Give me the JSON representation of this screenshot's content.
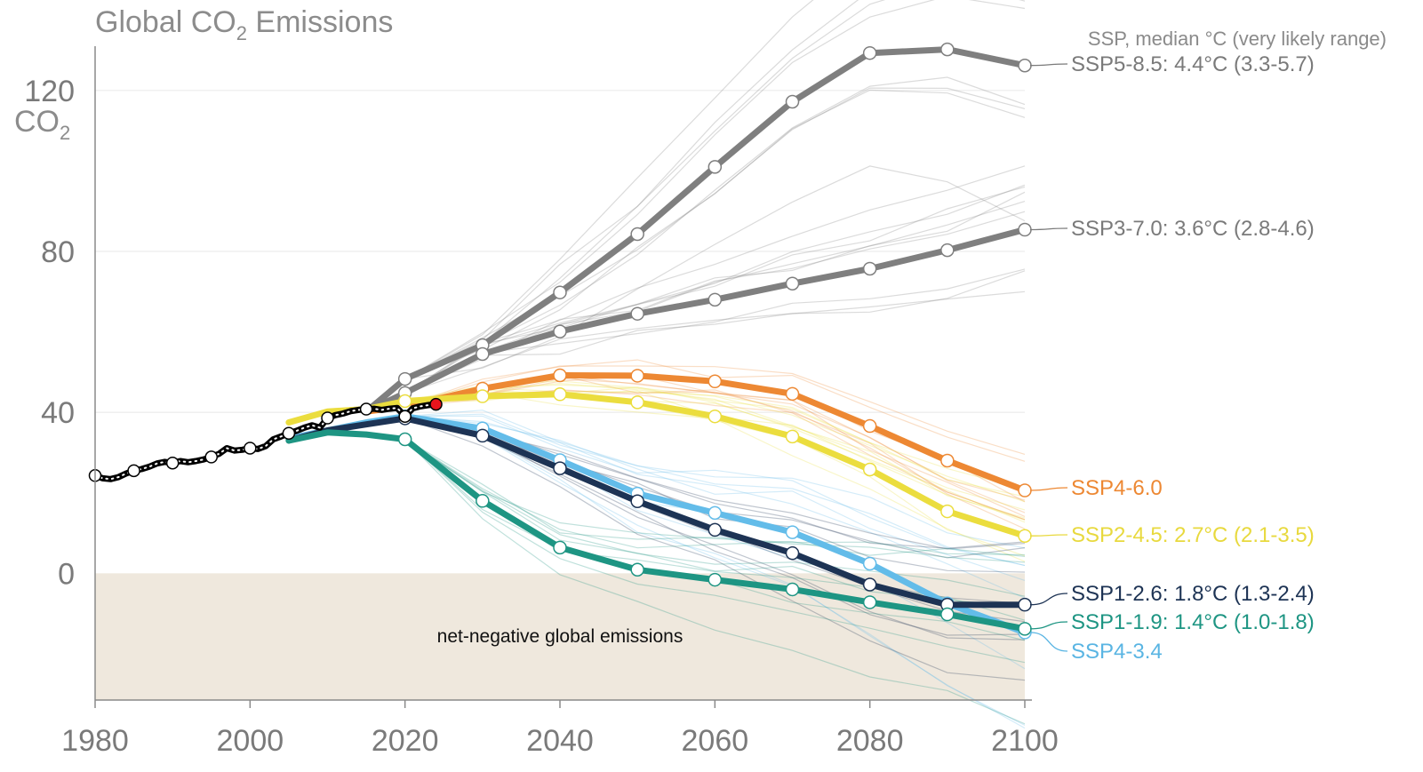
{
  "chart_data": {
    "type": "line",
    "title": "Global CO",
    "title_sub": "2",
    "title_suffix": " Emissions",
    "ylabel": "CO",
    "ylabel_sub": "2",
    "xlim": [
      1980,
      2100
    ],
    "ylim": [
      -31.5,
      131
    ],
    "x_ticks": [
      {
        "value": 1980,
        "label": "1980"
      },
      {
        "value": 2000,
        "label": "2000"
      },
      {
        "value": 2020,
        "label": "2020"
      },
      {
        "value": 2040,
        "label": "2040"
      },
      {
        "value": 2060,
        "label": "2060"
      },
      {
        "value": 2080,
        "label": "2080"
      },
      {
        "value": 2100,
        "label": "2100"
      }
    ],
    "y_ticks": [
      {
        "value": 0,
        "label": "0"
      },
      {
        "value": 40,
        "label": "40"
      },
      {
        "value": 80,
        "label": "80"
      },
      {
        "value": 120,
        "label": "120"
      }
    ],
    "grid": "horizontal",
    "legend_header": "SSP, median °C (very likely range)",
    "negative_region_label": "net-negative global emissions",
    "colors": {
      "negative_region": "#efe8dd",
      "axis": "#8a8a8a",
      "grid": "#ececec",
      "historical": "#000000",
      "latest_point": "#e8141c"
    },
    "historical": {
      "x": [
        1980,
        1981,
        1982,
        1983,
        1984,
        1985,
        1986,
        1987,
        1988,
        1989,
        1990,
        1991,
        1992,
        1993,
        1994,
        1995,
        1996,
        1997,
        1998,
        1999,
        2000,
        2001,
        2002,
        2003,
        2004,
        2005,
        2006,
        2007,
        2008,
        2009,
        2010,
        2011,
        2012,
        2013,
        2014,
        2015,
        2016,
        2017,
        2018,
        2019,
        2020,
        2021,
        2022,
        2023,
        2024
      ],
      "y": [
        24.3,
        23.6,
        23.4,
        23.9,
        24.8,
        25.5,
        25.9,
        26.5,
        27.3,
        27.7,
        27.4,
        27.9,
        27.6,
        27.9,
        28.3,
        28.9,
        29.7,
        31.1,
        30.5,
        30.7,
        31.1,
        30.9,
        31.6,
        33.3,
        34.0,
        34.8,
        35.4,
        36.2,
        36.8,
        36.2,
        38.6,
        39.3,
        39.7,
        40.3,
        40.6,
        40.8,
        40.9,
        40.6,
        40.9,
        41.1,
        39.0,
        41.0,
        41.5,
        41.8,
        42.0
      ],
      "markers": [
        1980,
        1985,
        1990,
        1995,
        2000,
        2005,
        2010,
        2015,
        2020
      ],
      "latest_x": 2024,
      "latest_y": 42.0
    },
    "series": [
      {
        "name": "SSP5-8.5: 4.4°C (3.3-5.7)",
        "color": "#7f7f7f",
        "label_color": "#7a7a7a",
        "x": [
          2015,
          2020,
          2030,
          2040,
          2050,
          2060,
          2070,
          2080,
          2090,
          2100
        ],
        "y": [
          40.2,
          48.3,
          56.7,
          69.8,
          84.3,
          101.0,
          117.2,
          129.3,
          130.2,
          126.2
        ]
      },
      {
        "name": "SSP3-7.0: 3.6°C (2.8-4.6)",
        "color": "#7f7f7f",
        "label_color": "#7a7a7a",
        "x": [
          2015,
          2020,
          2030,
          2040,
          2050,
          2060,
          2070,
          2080,
          2090,
          2100
        ],
        "y": [
          40.2,
          44.8,
          54.5,
          60.1,
          64.5,
          68.0,
          72.0,
          75.7,
          80.3,
          85.4
        ]
      },
      {
        "name": "SSP4-6.0",
        "color": "#ed8833",
        "label_color": "#ed8833",
        "x": [
          2015,
          2020,
          2030,
          2040,
          2050,
          2060,
          2070,
          2080,
          2090,
          2100
        ],
        "y": [
          40.2,
          41.5,
          45.9,
          49.2,
          49.1,
          47.7,
          44.6,
          36.6,
          28.0,
          20.6
        ]
      },
      {
        "name": "SSP2-4.5: 2.7°C (2.1-3.5)",
        "color": "#ebdd3e",
        "label_color": "#e8d93e",
        "x": [
          2005,
          2010,
          2015,
          2020,
          2030,
          2040,
          2050,
          2060,
          2070,
          2080,
          2090,
          2100
        ],
        "y": [
          37.5,
          40.2,
          40.8,
          42.8,
          44.0,
          44.5,
          42.5,
          39.0,
          34.0,
          25.8,
          15.4,
          9.3
        ]
      },
      {
        "name": "SSP4-3.4",
        "color": "#63bce9",
        "label_color": "#5ab5e3",
        "x": [
          2005,
          2010,
          2015,
          2020,
          2030,
          2040,
          2050,
          2060,
          2070,
          2080,
          2090,
          2100
        ],
        "y": [
          33.5,
          35.5,
          37.5,
          39.0,
          36.0,
          28.1,
          19.8,
          15.0,
          10.2,
          2.4,
          -7.5,
          -14.7
        ]
      },
      {
        "name": "SSP1-2.6: 1.8°C (1.3-2.4)",
        "color": "#1d3354",
        "label_color": "#1d3354",
        "x": [
          2005,
          2010,
          2015,
          2020,
          2030,
          2040,
          2050,
          2060,
          2070,
          2080,
          2090,
          2100
        ],
        "y": [
          33.0,
          35.5,
          37.0,
          38.5,
          34.2,
          26.1,
          17.9,
          10.8,
          5.0,
          -2.8,
          -7.8,
          -7.8
        ]
      },
      {
        "name": "SSP1-1.9: 1.4°C (1.0-1.8)",
        "color": "#1e9583",
        "label_color": "#1e9583",
        "x": [
          2005,
          2010,
          2015,
          2020,
          2030,
          2040,
          2050,
          2060,
          2070,
          2080,
          2090,
          2100
        ],
        "y": [
          33.0,
          35.0,
          34.5,
          33.3,
          18.0,
          6.4,
          0.9,
          -1.6,
          -4.0,
          -7.2,
          -10.2,
          -13.8
        ]
      }
    ]
  }
}
